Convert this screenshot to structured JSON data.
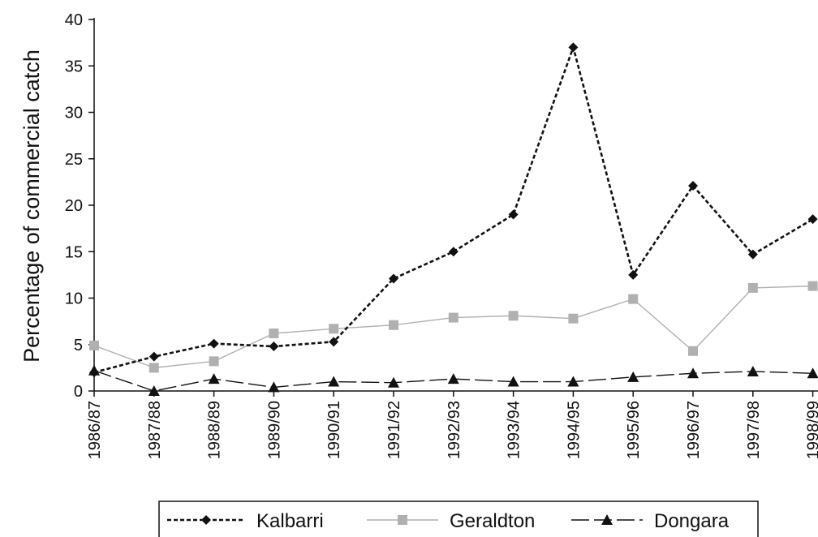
{
  "chart_data": {
    "type": "line",
    "title": "",
    "xlabel": "",
    "ylabel": "Percentage of commercial catch",
    "categories": [
      "1986/87",
      "1987/88",
      "1988/89",
      "1989/90",
      "1990/91",
      "1991/92",
      "1992/93",
      "1993/94",
      "1994/95",
      "1995/96",
      "1996/97",
      "1997/98",
      "1998/99"
    ],
    "ylim": [
      0,
      40
    ],
    "yticks": [
      0,
      5,
      10,
      15,
      20,
      25,
      30,
      35,
      40
    ],
    "grid": false,
    "legend_position": "bottom",
    "series": [
      {
        "name": "Kalbarri",
        "values": [
          2.0,
          3.7,
          5.1,
          4.8,
          5.3,
          12.1,
          15.0,
          19.0,
          37.0,
          12.5,
          22.1,
          14.7,
          18.5
        ],
        "color": "#111111",
        "marker": "diamond",
        "line": "dashed"
      },
      {
        "name": "Geraldton",
        "values": [
          4.9,
          2.5,
          3.2,
          6.2,
          6.7,
          7.1,
          7.9,
          8.1,
          7.8,
          9.9,
          4.3,
          11.1,
          11.3
        ],
        "color": "#b0b0b0",
        "marker": "square",
        "line": "solid"
      },
      {
        "name": "Dongara",
        "values": [
          2.2,
          0.0,
          1.3,
          0.4,
          1.0,
          0.9,
          1.3,
          1.0,
          1.0,
          1.5,
          1.9,
          2.1,
          1.9
        ],
        "color": "#111111",
        "marker": "triangle",
        "line": "longdash"
      }
    ]
  }
}
